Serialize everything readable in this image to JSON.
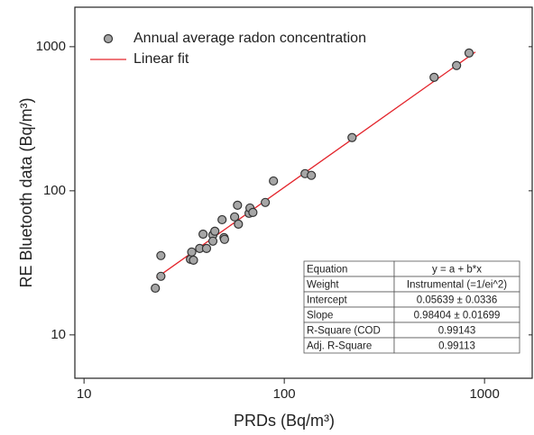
{
  "chart_data": {
    "type": "scatter",
    "x_label": "PRDs (Bq/m³)",
    "y_label": "RE Bluetooth data (Bq/m³)",
    "log_x": true,
    "log_y": true,
    "xlim": [
      9,
      1730
    ],
    "ylim": [
      5,
      1880
    ],
    "xticks": [
      10,
      100,
      1000
    ],
    "yticks": [
      10,
      100,
      1000
    ],
    "legend": "top-left",
    "series": [
      {
        "name": "Annual average radon concentration",
        "type": "scatter",
        "color": "#a6a6a6",
        "x": [
          22.7,
          24.2,
          24.2,
          34,
          34.5,
          35.2,
          37.8,
          39.3,
          40.9,
          44,
          44,
          45,
          48.9,
          50,
          50.3,
          56.5,
          58.4,
          59,
          66.7,
          67.4,
          69.7,
          80.4,
          88.3,
          127,
          136.5,
          218,
          560,
          725,
          837
        ],
        "values": [
          21.1,
          35.5,
          25.5,
          33.5,
          37.6,
          33,
          39.8,
          50,
          39.8,
          49.4,
          44.7,
          52.4,
          63,
          47.3,
          46,
          65.9,
          79.4,
          58.7,
          69.8,
          76,
          70.8,
          83,
          117,
          131.5,
          128,
          234,
          613,
          740,
          904
        ]
      },
      {
        "name": "Linear fit",
        "type": "line",
        "color": "#e3242b",
        "x": [
          23,
          900
        ],
        "values": [
          24.9,
          919
        ]
      }
    ],
    "fit_table": [
      [
        "Equation",
        "y = a + b*x"
      ],
      [
        "Weight",
        "Instrumental (=1/ei^2)"
      ],
      [
        "Intercept",
        "0.05639 ± 0.0336"
      ],
      [
        "Slope",
        "0.98404 ± 0.01699"
      ],
      [
        "R-Square (COD",
        "0.99143"
      ],
      [
        "Adj. R-Square",
        "0.99113"
      ]
    ]
  }
}
